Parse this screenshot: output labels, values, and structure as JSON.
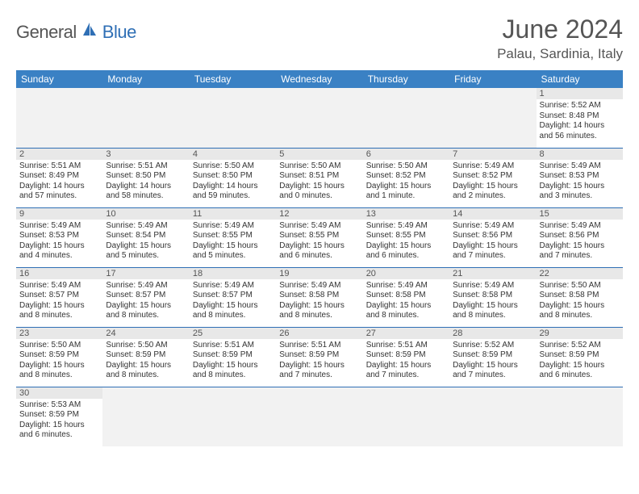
{
  "brand": {
    "general": "General",
    "blue": "Blue"
  },
  "title": {
    "month": "June 2024",
    "location": "Palau, Sardinia, Italy"
  },
  "day_headers": [
    "Sunday",
    "Monday",
    "Tuesday",
    "Wednesday",
    "Thursday",
    "Friday",
    "Saturday"
  ],
  "colors": {
    "header_bg": "#3a81c4",
    "header_text": "#ffffff",
    "row_border": "#2f6fb5",
    "daynum_bg": "#e8e8e8",
    "empty_bg": "#f2f2f2",
    "logo_blue": "#2f6fb5",
    "text_gray": "#555555"
  },
  "weeks": [
    [
      null,
      null,
      null,
      null,
      null,
      null,
      {
        "d": "1",
        "sunrise": "Sunrise: 5:52 AM",
        "sunset": "Sunset: 8:48 PM",
        "daylight": "Daylight: 14 hours and 56 minutes."
      }
    ],
    [
      {
        "d": "2",
        "sunrise": "Sunrise: 5:51 AM",
        "sunset": "Sunset: 8:49 PM",
        "daylight": "Daylight: 14 hours and 57 minutes."
      },
      {
        "d": "3",
        "sunrise": "Sunrise: 5:51 AM",
        "sunset": "Sunset: 8:50 PM",
        "daylight": "Daylight: 14 hours and 58 minutes."
      },
      {
        "d": "4",
        "sunrise": "Sunrise: 5:50 AM",
        "sunset": "Sunset: 8:50 PM",
        "daylight": "Daylight: 14 hours and 59 minutes."
      },
      {
        "d": "5",
        "sunrise": "Sunrise: 5:50 AM",
        "sunset": "Sunset: 8:51 PM",
        "daylight": "Daylight: 15 hours and 0 minutes."
      },
      {
        "d": "6",
        "sunrise": "Sunrise: 5:50 AM",
        "sunset": "Sunset: 8:52 PM",
        "daylight": "Daylight: 15 hours and 1 minute."
      },
      {
        "d": "7",
        "sunrise": "Sunrise: 5:49 AM",
        "sunset": "Sunset: 8:52 PM",
        "daylight": "Daylight: 15 hours and 2 minutes."
      },
      {
        "d": "8",
        "sunrise": "Sunrise: 5:49 AM",
        "sunset": "Sunset: 8:53 PM",
        "daylight": "Daylight: 15 hours and 3 minutes."
      }
    ],
    [
      {
        "d": "9",
        "sunrise": "Sunrise: 5:49 AM",
        "sunset": "Sunset: 8:53 PM",
        "daylight": "Daylight: 15 hours and 4 minutes."
      },
      {
        "d": "10",
        "sunrise": "Sunrise: 5:49 AM",
        "sunset": "Sunset: 8:54 PM",
        "daylight": "Daylight: 15 hours and 5 minutes."
      },
      {
        "d": "11",
        "sunrise": "Sunrise: 5:49 AM",
        "sunset": "Sunset: 8:55 PM",
        "daylight": "Daylight: 15 hours and 5 minutes."
      },
      {
        "d": "12",
        "sunrise": "Sunrise: 5:49 AM",
        "sunset": "Sunset: 8:55 PM",
        "daylight": "Daylight: 15 hours and 6 minutes."
      },
      {
        "d": "13",
        "sunrise": "Sunrise: 5:49 AM",
        "sunset": "Sunset: 8:55 PM",
        "daylight": "Daylight: 15 hours and 6 minutes."
      },
      {
        "d": "14",
        "sunrise": "Sunrise: 5:49 AM",
        "sunset": "Sunset: 8:56 PM",
        "daylight": "Daylight: 15 hours and 7 minutes."
      },
      {
        "d": "15",
        "sunrise": "Sunrise: 5:49 AM",
        "sunset": "Sunset: 8:56 PM",
        "daylight": "Daylight: 15 hours and 7 minutes."
      }
    ],
    [
      {
        "d": "16",
        "sunrise": "Sunrise: 5:49 AM",
        "sunset": "Sunset: 8:57 PM",
        "daylight": "Daylight: 15 hours and 8 minutes."
      },
      {
        "d": "17",
        "sunrise": "Sunrise: 5:49 AM",
        "sunset": "Sunset: 8:57 PM",
        "daylight": "Daylight: 15 hours and 8 minutes."
      },
      {
        "d": "18",
        "sunrise": "Sunrise: 5:49 AM",
        "sunset": "Sunset: 8:57 PM",
        "daylight": "Daylight: 15 hours and 8 minutes."
      },
      {
        "d": "19",
        "sunrise": "Sunrise: 5:49 AM",
        "sunset": "Sunset: 8:58 PM",
        "daylight": "Daylight: 15 hours and 8 minutes."
      },
      {
        "d": "20",
        "sunrise": "Sunrise: 5:49 AM",
        "sunset": "Sunset: 8:58 PM",
        "daylight": "Daylight: 15 hours and 8 minutes."
      },
      {
        "d": "21",
        "sunrise": "Sunrise: 5:49 AM",
        "sunset": "Sunset: 8:58 PM",
        "daylight": "Daylight: 15 hours and 8 minutes."
      },
      {
        "d": "22",
        "sunrise": "Sunrise: 5:50 AM",
        "sunset": "Sunset: 8:58 PM",
        "daylight": "Daylight: 15 hours and 8 minutes."
      }
    ],
    [
      {
        "d": "23",
        "sunrise": "Sunrise: 5:50 AM",
        "sunset": "Sunset: 8:59 PM",
        "daylight": "Daylight: 15 hours and 8 minutes."
      },
      {
        "d": "24",
        "sunrise": "Sunrise: 5:50 AM",
        "sunset": "Sunset: 8:59 PM",
        "daylight": "Daylight: 15 hours and 8 minutes."
      },
      {
        "d": "25",
        "sunrise": "Sunrise: 5:51 AM",
        "sunset": "Sunset: 8:59 PM",
        "daylight": "Daylight: 15 hours and 8 minutes."
      },
      {
        "d": "26",
        "sunrise": "Sunrise: 5:51 AM",
        "sunset": "Sunset: 8:59 PM",
        "daylight": "Daylight: 15 hours and 7 minutes."
      },
      {
        "d": "27",
        "sunrise": "Sunrise: 5:51 AM",
        "sunset": "Sunset: 8:59 PM",
        "daylight": "Daylight: 15 hours and 7 minutes."
      },
      {
        "d": "28",
        "sunrise": "Sunrise: 5:52 AM",
        "sunset": "Sunset: 8:59 PM",
        "daylight": "Daylight: 15 hours and 7 minutes."
      },
      {
        "d": "29",
        "sunrise": "Sunrise: 5:52 AM",
        "sunset": "Sunset: 8:59 PM",
        "daylight": "Daylight: 15 hours and 6 minutes."
      }
    ],
    [
      {
        "d": "30",
        "sunrise": "Sunrise: 5:53 AM",
        "sunset": "Sunset: 8:59 PM",
        "daylight": "Daylight: 15 hours and 6 minutes."
      },
      null,
      null,
      null,
      null,
      null,
      null
    ]
  ]
}
